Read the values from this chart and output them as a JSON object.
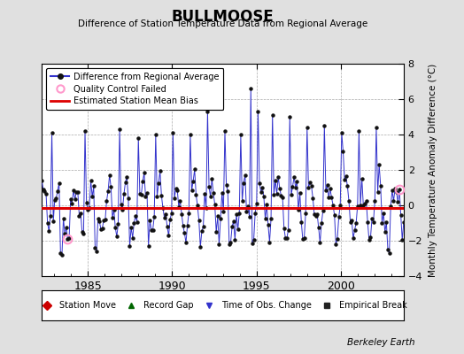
{
  "title": "BULLMOOSE",
  "subtitle": "Difference of Station Temperature Data from Regional Average",
  "ylabel": "Monthly Temperature Anomaly Difference (°C)",
  "xlabel_ticks": [
    1985,
    1990,
    1995,
    2000
  ],
  "ylim": [
    -4,
    8
  ],
  "yticks": [
    -4,
    -2,
    0,
    2,
    4,
    6,
    8
  ],
  "bias_value": -0.15,
  "background_color": "#e0e0e0",
  "plot_bg_color": "#ffffff",
  "line_color": "#3333cc",
  "bias_color": "#dd0000",
  "marker_color": "#111111",
  "qc_color": "#ff99cc",
  "legend1_entries": [
    {
      "label": "Difference from Regional Average"
    },
    {
      "label": "Quality Control Failed"
    },
    {
      "label": "Estimated Station Mean Bias"
    }
  ],
  "legend2_entries": [
    {
      "label": "Station Move",
      "color": "#cc0000",
      "marker": "D"
    },
    {
      "label": "Record Gap",
      "color": "#006600",
      "marker": "^"
    },
    {
      "label": "Time of Obs. Change",
      "color": "#3333cc",
      "marker": "v"
    },
    {
      "label": "Empirical Break",
      "color": "#222222",
      "marker": "s"
    }
  ],
  "watermark": "Berkeley Earth",
  "seed": 42,
  "n_points": 252,
  "start_year": 1982.25,
  "end_year": 2003.75
}
